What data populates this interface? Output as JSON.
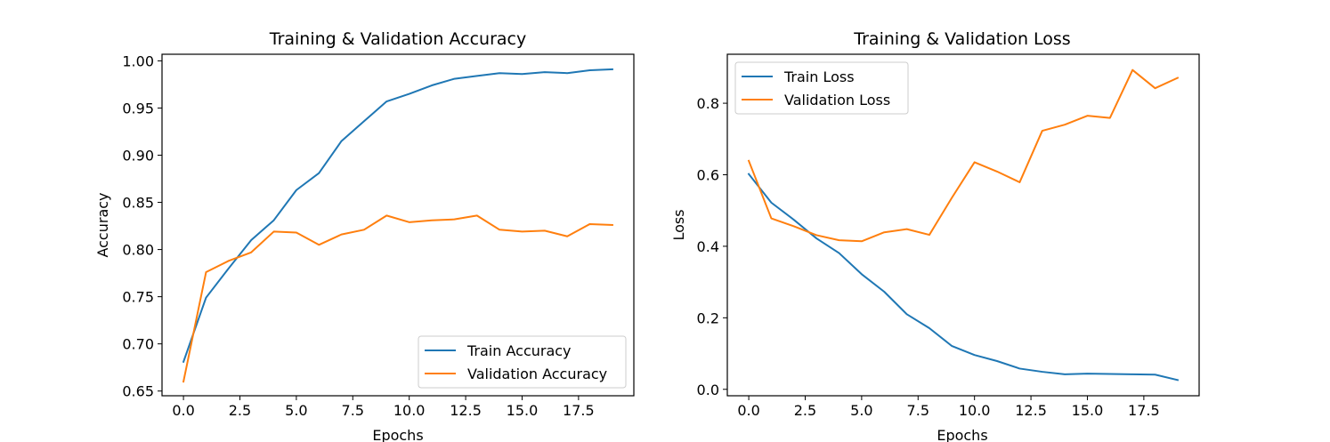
{
  "colors": {
    "train": "#1f77b4",
    "validation": "#ff7f0e"
  },
  "chart_data": [
    {
      "type": "line",
      "title": "Training & Validation Accuracy",
      "xlabel": "Epochs",
      "ylabel": "Accuracy",
      "xlim": [
        -0.95,
        19.95
      ],
      "ylim": [
        0.645,
        1.007
      ],
      "xticks": [
        0.0,
        2.5,
        5.0,
        7.5,
        10.0,
        12.5,
        15.0,
        17.5
      ],
      "xtick_labels": [
        "0.0",
        "2.5",
        "5.0",
        "7.5",
        "10.0",
        "12.5",
        "15.0",
        "17.5"
      ],
      "yticks": [
        0.65,
        0.7,
        0.75,
        0.8,
        0.85,
        0.9,
        0.95,
        1.0
      ],
      "ytick_labels": [
        "0.65",
        "0.70",
        "0.75",
        "0.80",
        "0.85",
        "0.90",
        "0.95",
        "1.00"
      ],
      "legend_position": "lower-right",
      "x": [
        0,
        1,
        2,
        3,
        4,
        5,
        6,
        7,
        8,
        9,
        10,
        11,
        12,
        13,
        14,
        15,
        16,
        17,
        18,
        19
      ],
      "series": [
        {
          "name": "Train Accuracy",
          "color": "#1f77b4",
          "values": [
            0.681,
            0.749,
            0.78,
            0.81,
            0.831,
            0.863,
            0.881,
            0.915,
            0.936,
            0.957,
            0.965,
            0.974,
            0.981,
            0.984,
            0.987,
            0.986,
            0.988,
            0.987,
            0.99,
            0.991
          ]
        },
        {
          "name": "Validation Accuracy",
          "color": "#ff7f0e",
          "values": [
            0.66,
            0.776,
            0.788,
            0.797,
            0.819,
            0.818,
            0.805,
            0.816,
            0.821,
            0.836,
            0.829,
            0.831,
            0.832,
            0.836,
            0.821,
            0.819,
            0.82,
            0.814,
            0.827,
            0.826
          ]
        }
      ]
    },
    {
      "type": "line",
      "title": "Training & Validation Loss",
      "xlabel": "Epochs",
      "ylabel": "Loss",
      "xlim": [
        -0.95,
        19.95
      ],
      "ylim": [
        -0.018,
        0.937
      ],
      "xticks": [
        0.0,
        2.5,
        5.0,
        7.5,
        10.0,
        12.5,
        15.0,
        17.5
      ],
      "xtick_labels": [
        "0.0",
        "2.5",
        "5.0",
        "7.5",
        "10.0",
        "12.5",
        "15.0",
        "17.5"
      ],
      "yticks": [
        0.0,
        0.2,
        0.4,
        0.6,
        0.8
      ],
      "ytick_labels": [
        "0.0",
        "0.2",
        "0.4",
        "0.6",
        "0.8"
      ],
      "legend_position": "upper-left",
      "x": [
        0,
        1,
        2,
        3,
        4,
        5,
        6,
        7,
        8,
        9,
        10,
        11,
        12,
        13,
        14,
        15,
        16,
        17,
        18,
        19
      ],
      "series": [
        {
          "name": "Train Loss",
          "color": "#1f77b4",
          "values": [
            0.602,
            0.522,
            0.474,
            0.422,
            0.381,
            0.322,
            0.273,
            0.21,
            0.171,
            0.121,
            0.096,
            0.079,
            0.058,
            0.049,
            0.042,
            0.044,
            0.043,
            0.042,
            0.041,
            0.026
          ]
        },
        {
          "name": "Validation Loss",
          "color": "#ff7f0e",
          "values": [
            0.639,
            0.478,
            0.456,
            0.431,
            0.417,
            0.414,
            0.439,
            0.448,
            0.432,
            0.536,
            0.635,
            0.609,
            0.579,
            0.723,
            0.74,
            0.765,
            0.759,
            0.893,
            0.842,
            0.871
          ]
        }
      ]
    }
  ]
}
